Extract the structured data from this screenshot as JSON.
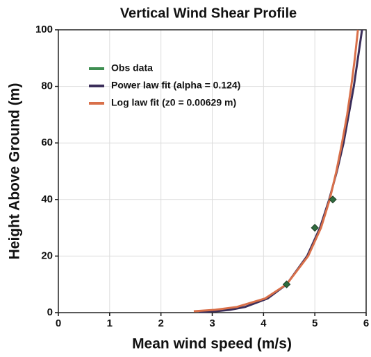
{
  "chart_data": {
    "type": "line",
    "title": "Vertical Wind Shear Profile",
    "xlabel": "Mean wind speed (m/s)",
    "ylabel": "Height Above Ground (m)",
    "xlim": [
      0,
      6
    ],
    "xticks": [
      0,
      1,
      2,
      3,
      4,
      5,
      6
    ],
    "ylim": [
      0,
      100
    ],
    "yticks": [
      0,
      20,
      40,
      60,
      80,
      100
    ],
    "grid": true,
    "legend": "upper left",
    "series": [
      {
        "name": "Obs data",
        "kind": "scatter",
        "color": "#3f8f52",
        "marker_color": "#2f6b3e",
        "x": [
          4.45,
          5.0,
          5.35
        ],
        "values": [
          10,
          30,
          40
        ]
      },
      {
        "name": "Power law fit (alpha = 0.124)",
        "kind": "line",
        "color": "#3b2e5a",
        "x": [
          2.74,
          3.07,
          3.35,
          3.64,
          4.08,
          4.45,
          4.85,
          5.1,
          5.28,
          5.43,
          5.56,
          5.66,
          5.76,
          5.84,
          5.92
        ],
        "values": [
          0.2,
          0.5,
          1,
          2,
          5,
          10,
          20,
          30,
          40,
          50,
          60,
          70,
          80,
          90,
          100
        ]
      },
      {
        "name": "Log law fit (z0 = 0.00629 m)",
        "kind": "line",
        "color": "#d9704a",
        "x": [
          2.64,
          3.06,
          3.48,
          4.03,
          4.45,
          4.87,
          5.12,
          5.29,
          5.42,
          5.53,
          5.63,
          5.71,
          5.78,
          5.84
        ],
        "values": [
          0.5,
          1,
          2,
          5,
          10,
          20,
          30,
          40,
          50,
          60,
          70,
          80,
          90,
          100
        ]
      }
    ]
  }
}
